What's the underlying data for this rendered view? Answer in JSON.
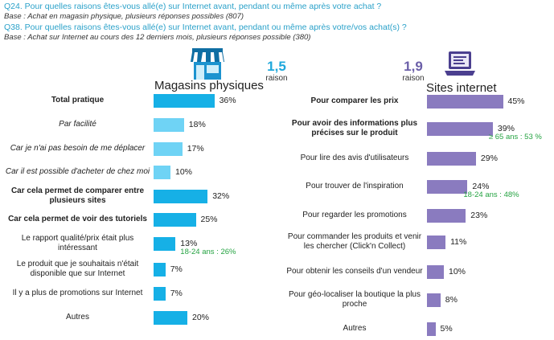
{
  "header": {
    "q24": "Q24. Pour quelles raisons êtes-vous allé(e) sur Internet avant, pendant ou même après votre achat ?",
    "base24": "Base : Achat en magasin physique, plusieurs réponses possibles (807)",
    "q38": "Q38. Pour quelles raisons êtes-vous allé(e) sur Internet avant, pendant ou même après votre/vos achat(s) ?",
    "base38": "Base : Achat sur Internet au cours des 12 derniers mois, plusieurs réponses possible (380)"
  },
  "colors": {
    "question": "#2aa1c9",
    "highlight": "#25a342"
  },
  "chart_data": [
    {
      "type": "bar",
      "title": "Magasins physiques",
      "icon": "store-icon",
      "average": {
        "value": "1,5",
        "label": "raison",
        "color": "#1fa8dc"
      },
      "categories": [
        "Total pratique",
        "Par facilité",
        "Car je n'ai pas besoin de me déplacer",
        "Car il est possible d'acheter de chez moi",
        "Car cela permet de comparer entre plusieurs sites",
        "Car cela permet de voir des tutoriels",
        "Le rapport qualité/prix était plus intéressant",
        "Le produit que je souhaitais n'était disponible que sur Internet",
        "Il y a plus de promotions sur Internet",
        "Autres"
      ],
      "values": [
        36,
        18,
        17,
        10,
        32,
        25,
        13,
        7,
        7,
        20
      ],
      "value_labels": [
        "36%",
        "18%",
        "17%",
        "10%",
        "32%",
        "25%",
        "13%",
        "7%",
        "7%",
        "20%"
      ],
      "bold": [
        true,
        false,
        false,
        false,
        true,
        true,
        false,
        false,
        false,
        false
      ],
      "italic": [
        false,
        true,
        true,
        true,
        false,
        false,
        false,
        false,
        false,
        false
      ],
      "bar_colors": [
        "#16b0e6",
        "#6fd3f5",
        "#6fd3f5",
        "#6fd3f5",
        "#16b0e6",
        "#16b0e6",
        "#16b0e6",
        "#16b0e6",
        "#16b0e6",
        "#16b0e6"
      ],
      "notes": [
        "",
        "",
        "",
        "",
        "",
        "",
        "18-24 ans : 26%",
        "",
        "",
        ""
      ]
    },
    {
      "type": "bar",
      "title": "Sites internet",
      "icon": "laptop-icon",
      "average": {
        "value": "1,9",
        "label": "raison",
        "color": "#6b5fa8"
      },
      "categories": [
        "Pour comparer les prix",
        "Pour avoir des informations plus précises sur le produit",
        "Pour lire des avis d'utilisateurs",
        "Pour trouver de l'inspiration",
        "Pour regarder les promotions",
        "Pour commander les produits et venir les chercher (Click'n Collect)",
        "Pour obtenir les conseils d'un vendeur",
        "Pour géo-localiser la boutique la plus proche",
        "Autres"
      ],
      "values": [
        45,
        39,
        29,
        24,
        23,
        11,
        10,
        8,
        5
      ],
      "value_labels": [
        "45%",
        "39%",
        "29%",
        "24%",
        "23%",
        "11%",
        "10%",
        "8%",
        "5%"
      ],
      "bold": [
        true,
        true,
        false,
        false,
        false,
        false,
        false,
        false,
        false
      ],
      "italic": [
        false,
        false,
        false,
        false,
        false,
        false,
        false,
        false,
        false
      ],
      "bar_colors": [
        "#8a7bbf",
        "#8a7bbf",
        "#8a7bbf",
        "#8a7bbf",
        "#8a7bbf",
        "#8a7bbf",
        "#8a7bbf",
        "#8a7bbf",
        "#8a7bbf"
      ],
      "notes": [
        "",
        "≥ 65 ans : 53 %",
        "",
        "18-24 ans : 48%",
        "",
        "",
        "",
        "",
        ""
      ]
    }
  ]
}
